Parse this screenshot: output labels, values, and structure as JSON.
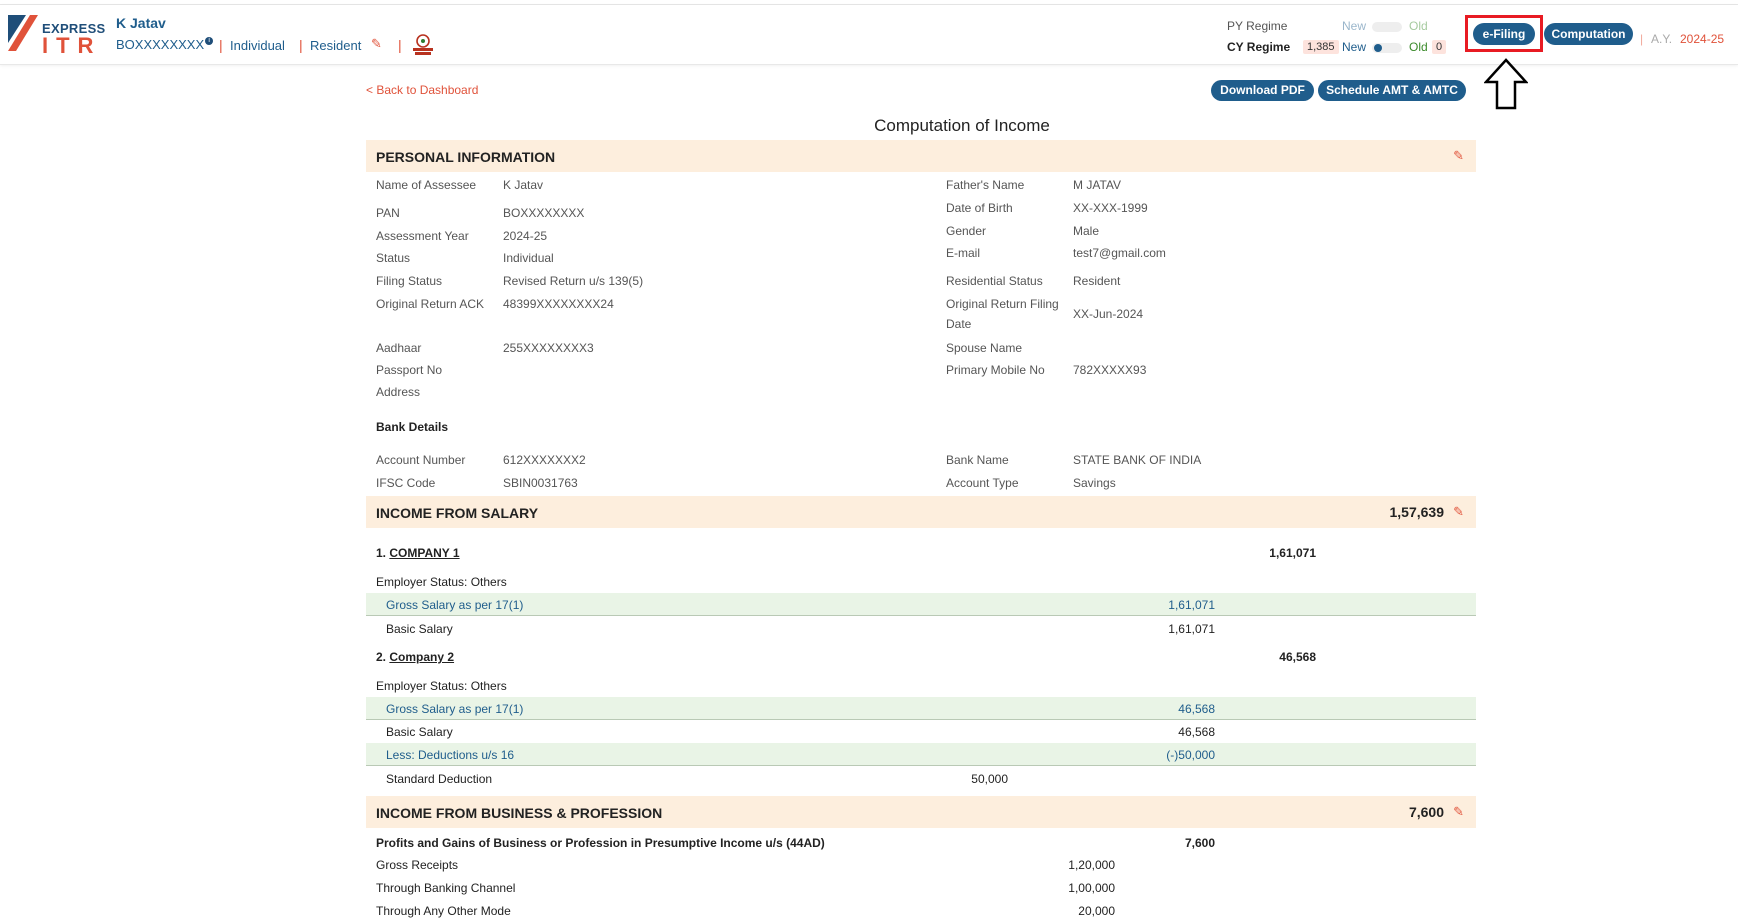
{
  "header": {
    "logo_top": "EXPRESS",
    "logo_bottom": "ITR",
    "user_name": "K Jatav",
    "user_pan": "BOXXXXXXXX",
    "info_glyph": "i",
    "status": "Individual",
    "residency": "Resident",
    "py_regime_label": "PY Regime",
    "cy_regime_label": "CY Regime",
    "py_new": "New",
    "py_old": "Old",
    "cy_new": "New",
    "cy_old": "Old",
    "cy_new_amount": "1,385",
    "cy_old_amount": "0",
    "efiling_label": "e-Filing",
    "computation_label": "Computation",
    "ay_label": "A.Y.",
    "ay_value": "2024-25",
    "sep": "|",
    "pencil_glyph": "✎"
  },
  "toolbar": {
    "back_label": "< Back to Dashboard",
    "download_pdf": "Download PDF",
    "schedule_amt": "Schedule AMT & AMTC"
  },
  "page_title": "Computation of Income",
  "personal": {
    "section_title": "PERSONAL INFORMATION",
    "left": [
      {
        "k": "Name of Assessee",
        "v": "K Jatav"
      },
      {
        "k": "PAN",
        "v": "BOXXXXXXXX"
      },
      {
        "k": "Assessment Year",
        "v": "2024-25"
      },
      {
        "k": "Status",
        "v": "Individual"
      },
      {
        "k": "Filing Status",
        "v": "Revised Return u/s 139(5)"
      },
      {
        "k": "Original Return ACK",
        "v": "48399XXXXXXXX24"
      },
      {
        "k": "Aadhaar",
        "v": "255XXXXXXXX3"
      },
      {
        "k": "Passport No",
        "v": ""
      },
      {
        "k": "Address",
        "v": ""
      }
    ],
    "right": [
      {
        "k": "Father's Name",
        "v": "M JATAV"
      },
      {
        "k": "Date of Birth",
        "v": "XX-XXX-1999"
      },
      {
        "k": "Gender",
        "v": "Male"
      },
      {
        "k": "E-mail",
        "v": "test7@gmail.com"
      },
      {
        "k": "Residential Status",
        "v": "Resident"
      },
      {
        "k": "Original Return Filing",
        "k2": "Date",
        "v": "XX-Jun-2024"
      },
      {
        "k": "Spouse Name",
        "v": ""
      },
      {
        "k": "Primary Mobile No",
        "v": "782XXXXX93"
      }
    ],
    "bank_title": "Bank Details",
    "bank_left": [
      {
        "k": "Account Number",
        "v": "612XXXXXXX2"
      },
      {
        "k": "IFSC Code",
        "v": "SBIN0031763"
      }
    ],
    "bank_right": [
      {
        "k": "Bank Name",
        "v": "STATE BANK OF INDIA"
      },
      {
        "k": "Account Type",
        "v": "Savings"
      }
    ]
  },
  "salary": {
    "section_title": "INCOME FROM SALARY",
    "total": "1,57,639",
    "company1_prefix": "1.",
    "company1_name": "COMPANY 1",
    "company1_total": "1,61,071",
    "company1_status": "Employer Status: Others",
    "company1_gross_label": "Gross Salary as per 17(1)",
    "company1_gross": "1,61,071",
    "company1_basic_label": "Basic Salary",
    "company1_basic": "1,61,071",
    "company2_prefix": "2.",
    "company2_name": "Company 2",
    "company2_total": "46,568",
    "company2_status": "Employer Status: Others",
    "company2_gross_label": "Gross Salary as per 17(1)",
    "company2_gross": "46,568",
    "company2_basic_label": "Basic Salary",
    "company2_basic": "46,568",
    "deductions_label": "Less: Deductions u/s 16",
    "deductions": "(-)50,000",
    "std_deduction_label": "Standard Deduction",
    "std_deduction": "50,000"
  },
  "business": {
    "section_title": "INCOME FROM BUSINESS & PROFESSION",
    "total": "7,600",
    "presumptive_label": "Profits and Gains of Business or Profession in Presumptive Income u/s (44AD)",
    "presumptive_value": "7,600",
    "gross_receipts_label": "Gross Receipts",
    "gross_receipts": "1,20,000",
    "banking_label": "Through Banking Channel",
    "banking": "1,00,000",
    "other_mode_label": "Through Any Other Mode",
    "other_mode": "20,000"
  },
  "colors": {
    "brand_blue": "#1f5d8c",
    "accent_red": "#e0523a",
    "section_bg": "#fdeedd",
    "band_bg": "#e9f4e6",
    "highlight": "#e81b23"
  }
}
